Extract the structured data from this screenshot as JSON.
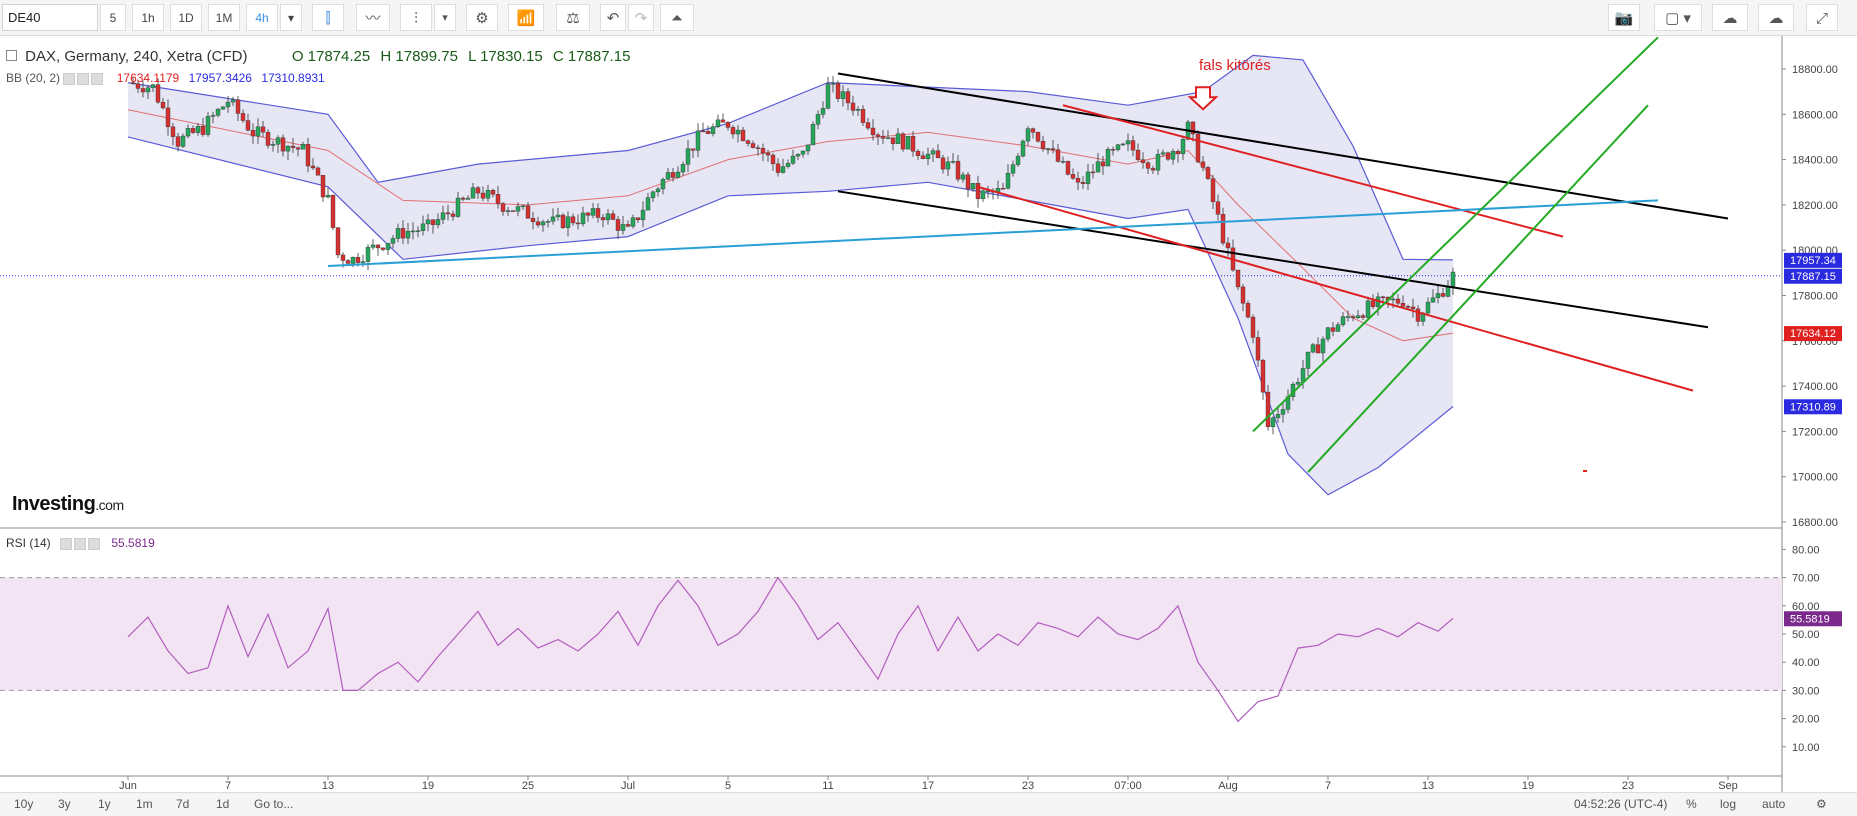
{
  "toolbar": {
    "symbol": "DE40",
    "timeframes": [
      "5",
      "1h",
      "1D",
      "1M",
      "4h"
    ],
    "active_timeframe": "4h",
    "icons": [
      "candlestick-icon",
      "line-chart-icon",
      "bar-chart-icon",
      "chevron-down-icon",
      "gear-icon",
      "indicators-icon",
      "compare-icon",
      "undo-icon",
      "redo-icon",
      "alert-icon",
      "camera-icon",
      "color-box-icon",
      "chevron-down-icon",
      "cloud-download-icon",
      "cloud-upload-icon",
      "fullscreen-icon"
    ]
  },
  "legend": {
    "symbol": "DAX, Germany, 240, Xetra (CFD)",
    "open": "O 17874.25",
    "high": "H 17899.75",
    "low": "L 17830.15",
    "close": "C 17887.15"
  },
  "bb_legend": {
    "label": "BB (20, 2)",
    "mid": "17634.1179",
    "upper": "17957.3426",
    "lower": "17310.8931"
  },
  "rsi_legend": {
    "label": "RSI (14)",
    "value": "55.5819"
  },
  "annotation": {
    "text": "fals kitörés"
  },
  "watermark": {
    "brand": "Investing",
    "suffix": ".com"
  },
  "price_badges": [
    {
      "label": "17957.34",
      "value": 17957.34,
      "color": "#2a2ae0"
    },
    {
      "label": "17887.15",
      "value": 17887.15,
      "color": "#2a2ae0"
    },
    {
      "label": "17634.12",
      "value": 17634.12,
      "color": "#e02020"
    },
    {
      "label": "17310.89",
      "value": 17310.89,
      "color": "#2a2ae0"
    }
  ],
  "rsi_badge": {
    "label": "55.5819",
    "value": 55.58,
    "color": "#7b2a8c"
  },
  "bottom_bar": {
    "ranges": [
      "10y",
      "3y",
      "1y",
      "1m",
      "7d",
      "1d",
      "Go to..."
    ],
    "time": "04:52:26 (UTC-4)",
    "options": [
      "%",
      "log",
      "auto"
    ]
  },
  "chart_data": [
    {
      "type": "candlestick",
      "title": "",
      "xlabel": "",
      "ylabel": "",
      "ylim": [
        16800,
        18900
      ],
      "y_ticks": [
        16800,
        17000,
        17200,
        17400,
        17600,
        17800,
        18000,
        18200,
        18400,
        18600,
        18800
      ],
      "x_ticks": [
        {
          "label": "Jun",
          "bar": 0
        },
        {
          "label": "7",
          "bar": 20
        },
        {
          "label": "13",
          "bar": 40
        },
        {
          "label": "19",
          "bar": 60
        },
        {
          "label": "25",
          "bar": 80
        },
        {
          "label": "Jul",
          "bar": 100
        },
        {
          "label": "5",
          "bar": 120
        },
        {
          "label": "11",
          "bar": 140
        },
        {
          "label": "17",
          "bar": 160
        },
        {
          "label": "23",
          "bar": 180
        },
        {
          "label": "07:00",
          "bar": 200
        },
        {
          "label": "Aug",
          "bar": 220
        },
        {
          "label": "7",
          "bar": 240
        },
        {
          "label": "13",
          "bar": 260
        },
        {
          "label": "19",
          "bar": 280
        },
        {
          "label": "23",
          "bar": 300
        },
        {
          "label": "Sep",
          "bar": 320
        }
      ],
      "close_path": [
        [
          0,
          18740
        ],
        [
          5,
          18720
        ],
        [
          10,
          18480
        ],
        [
          15,
          18540
        ],
        [
          20,
          18660
        ],
        [
          25,
          18520
        ],
        [
          30,
          18480
        ],
        [
          35,
          18440
        ],
        [
          40,
          18220
        ],
        [
          42,
          17980
        ],
        [
          45,
          17960
        ],
        [
          50,
          18020
        ],
        [
          55,
          18080
        ],
        [
          60,
          18100
        ],
        [
          65,
          18180
        ],
        [
          70,
          18260
        ],
        [
          75,
          18200
        ],
        [
          80,
          18160
        ],
        [
          85,
          18120
        ],
        [
          90,
          18140
        ],
        [
          95,
          18160
        ],
        [
          100,
          18080
        ],
        [
          105,
          18260
        ],
        [
          110,
          18380
        ],
        [
          115,
          18520
        ],
        [
          120,
          18560
        ],
        [
          125,
          18480
        ],
        [
          130,
          18360
        ],
        [
          135,
          18420
        ],
        [
          140,
          18720
        ],
        [
          145,
          18640
        ],
        [
          150,
          18520
        ],
        [
          155,
          18480
        ],
        [
          160,
          18420
        ],
        [
          165,
          18360
        ],
        [
          170,
          18240
        ],
        [
          175,
          18260
        ],
        [
          180,
          18560
        ],
        [
          185,
          18420
        ],
        [
          190,
          18280
        ],
        [
          195,
          18400
        ],
        [
          200,
          18460
        ],
        [
          205,
          18380
        ],
        [
          210,
          18460
        ],
        [
          212,
          18540
        ],
        [
          215,
          18360
        ],
        [
          218,
          18140
        ],
        [
          222,
          17820
        ],
        [
          225,
          17640
        ],
        [
          228,
          17220
        ],
        [
          232,
          17360
        ],
        [
          236,
          17520
        ],
        [
          240,
          17640
        ],
        [
          245,
          17720
        ],
        [
          250,
          17760
        ],
        [
          255,
          17780
        ],
        [
          258,
          17720
        ],
        [
          262,
          17800
        ],
        [
          265,
          17887
        ]
      ],
      "bollinger": {
        "upper_path": [
          [
            0,
            18740
          ],
          [
            40,
            18600
          ],
          [
            50,
            18300
          ],
          [
            70,
            18380
          ],
          [
            100,
            18440
          ],
          [
            120,
            18560
          ],
          [
            140,
            18740
          ],
          [
            160,
            18720
          ],
          [
            180,
            18700
          ],
          [
            200,
            18640
          ],
          [
            215,
            18700
          ],
          [
            225,
            18860
          ],
          [
            235,
            18840
          ],
          [
            245,
            18460
          ],
          [
            255,
            17960
          ],
          [
            265,
            17957
          ]
        ],
        "mid_path": [
          [
            0,
            18620
          ],
          [
            40,
            18440
          ],
          [
            55,
            18220
          ],
          [
            80,
            18200
          ],
          [
            100,
            18240
          ],
          [
            120,
            18400
          ],
          [
            140,
            18480
          ],
          [
            160,
            18520
          ],
          [
            180,
            18460
          ],
          [
            200,
            18380
          ],
          [
            212,
            18440
          ],
          [
            222,
            18200
          ],
          [
            235,
            17920
          ],
          [
            245,
            17700
          ],
          [
            255,
            17600
          ],
          [
            265,
            17634
          ]
        ],
        "lower_path": [
          [
            0,
            18500
          ],
          [
            40,
            18280
          ],
          [
            55,
            17960
          ],
          [
            80,
            18020
          ],
          [
            100,
            18060
          ],
          [
            120,
            18240
          ],
          [
            140,
            18260
          ],
          [
            160,
            18300
          ],
          [
            180,
            18220
          ],
          [
            200,
            18140
          ],
          [
            212,
            18180
          ],
          [
            222,
            17700
          ],
          [
            232,
            17100
          ],
          [
            240,
            16920
          ],
          [
            250,
            17040
          ],
          [
            265,
            17310
          ]
        ]
      },
      "trendlines": [
        {
          "color": "#000000",
          "from": [
            142,
            18780
          ],
          "to": [
            320,
            18140
          ]
        },
        {
          "color": "#000000",
          "from": [
            142,
            18260
          ],
          "to": [
            316,
            17660
          ]
        },
        {
          "color": "#e02020",
          "from": [
            187,
            18640
          ],
          "to": [
            287,
            18060
          ]
        },
        {
          "color": "#e02020",
          "from": [
            170,
            18280
          ],
          "to": [
            313,
            17380
          ]
        },
        {
          "color": "#2a9fd6",
          "from": [
            40,
            17930
          ],
          "to": [
            306,
            18220
          ]
        },
        {
          "color": "#22aa22",
          "from": [
            225,
            17200
          ],
          "to": [
            306,
            18940
          ]
        },
        {
          "color": "#22aa22",
          "from": [
            236,
            17020
          ],
          "to": [
            304,
            18640
          ]
        }
      ]
    },
    {
      "type": "line",
      "title": "",
      "ylabel": "",
      "ylim": [
        0,
        80
      ],
      "y_ticks": [
        10,
        20,
        30,
        40,
        50,
        60,
        70,
        80
      ],
      "bands": [
        30,
        70
      ],
      "series": [
        {
          "name": "RSI (14)",
          "values_path": [
            [
              0,
              49
            ],
            [
              4,
              56
            ],
            [
              8,
              44
            ],
            [
              12,
              36
            ],
            [
              16,
              38
            ],
            [
              20,
              60
            ],
            [
              24,
              42
            ],
            [
              28,
              57
            ],
            [
              32,
              38
            ],
            [
              36,
              44
            ],
            [
              40,
              59
            ],
            [
              43,
              30
            ],
            [
              46,
              30
            ],
            [
              50,
              36
            ],
            [
              54,
              40
            ],
            [
              58,
              33
            ],
            [
              62,
              42
            ],
            [
              66,
              50
            ],
            [
              70,
              58
            ],
            [
              74,
              46
            ],
            [
              78,
              52
            ],
            [
              82,
              45
            ],
            [
              86,
              48
            ],
            [
              90,
              44
            ],
            [
              94,
              50
            ],
            [
              98,
              58
            ],
            [
              102,
              46
            ],
            [
              106,
              60
            ],
            [
              110,
              69
            ],
            [
              114,
              60
            ],
            [
              118,
              46
            ],
            [
              122,
              50
            ],
            [
              126,
              58
            ],
            [
              130,
              70
            ],
            [
              134,
              60
            ],
            [
              138,
              48
            ],
            [
              142,
              54
            ],
            [
              146,
              44
            ],
            [
              150,
              34
            ],
            [
              154,
              50
            ],
            [
              158,
              60
            ],
            [
              162,
              44
            ],
            [
              166,
              56
            ],
            [
              170,
              44
            ],
            [
              174,
              50
            ],
            [
              178,
              46
            ],
            [
              182,
              54
            ],
            [
              186,
              52
            ],
            [
              190,
              49
            ],
            [
              194,
              56
            ],
            [
              198,
              50
            ],
            [
              202,
              48
            ],
            [
              206,
              52
            ],
            [
              210,
              60
            ],
            [
              214,
              40
            ],
            [
              218,
              30
            ],
            [
              222,
              19
            ],
            [
              226,
              26
            ],
            [
              230,
              28
            ],
            [
              234,
              45
            ],
            [
              238,
              46
            ],
            [
              242,
              50
            ],
            [
              246,
              49
            ],
            [
              250,
              52
            ],
            [
              254,
              49
            ],
            [
              258,
              54
            ],
            [
              262,
              51
            ],
            [
              265,
              55.58
            ]
          ]
        }
      ]
    }
  ]
}
